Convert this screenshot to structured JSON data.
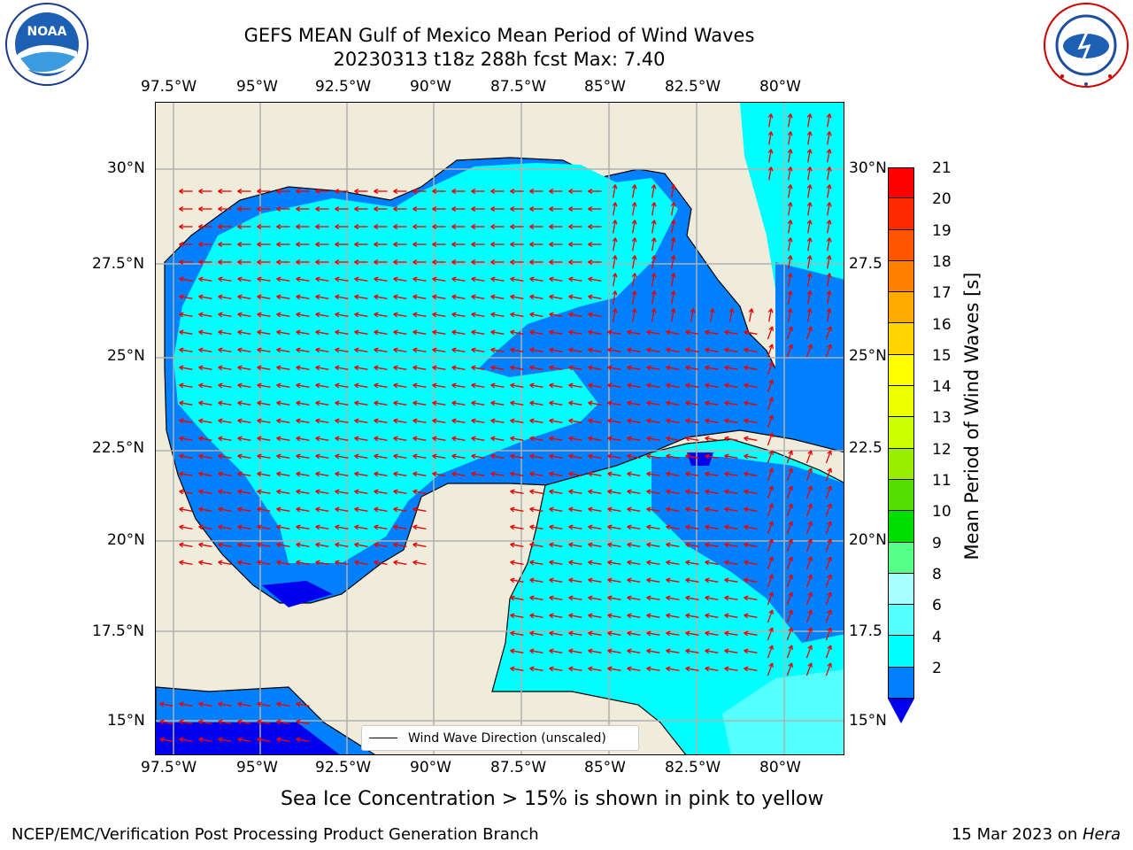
{
  "title": {
    "line1": "GEFS MEAN Gulf of Mexico Mean Period of Wind Waves",
    "line2": "20230313 t18z 288h fcst   Max: 7.40"
  },
  "axes": {
    "lon_labels": [
      "97.5°W",
      "95°W",
      "92.5°W",
      "90°W",
      "87.5°W",
      "85°W",
      "82.5°W",
      "80°W"
    ],
    "lat_labels": [
      "30°N",
      "27.5°N",
      "25°N",
      "22.5°N",
      "20°N",
      "17.5°N",
      "15°N"
    ],
    "lat_labels_right": [
      "30°N",
      "27.5",
      "25°N",
      "22.5",
      "20°N",
      "17.5",
      "15°N"
    ]
  },
  "legend": {
    "label": "Wind Wave Direction (unscaled)"
  },
  "colorbar": {
    "title": "Mean Period of Wind Waves [s]",
    "labels": [
      "21",
      "20",
      "19",
      "18",
      "17",
      "16",
      "15",
      "14",
      "13",
      "12",
      "11",
      "10",
      "9",
      "8",
      "6",
      "4",
      "2"
    ],
    "colors": [
      "#ff0000",
      "#ff2a00",
      "#ff5500",
      "#ff8000",
      "#ffaa00",
      "#ffd400",
      "#ffff00",
      "#eeff00",
      "#ccff00",
      "#99ee00",
      "#55dd00",
      "#00dd00",
      "#55ff88",
      "#aaffff",
      "#55ffff",
      "#00ffff",
      "#0080ff"
    ],
    "extend_color": "#0000ee"
  },
  "map_colors": {
    "land": "#efecdb",
    "level_2_4": "#0080ff",
    "level_4_6": "#00ffff",
    "level_6_8": "#55ffff",
    "below_2": "#0000ee",
    "arrows": "#ee0000"
  },
  "subtitle": "Sea Ice Concentration > 15% is shown in pink to yellow",
  "footer": {
    "left": "NCEP/EMC/Verification Post Processing Product Generation Branch",
    "right_date": "15 Mar 2023 on ",
    "right_host": "Hera"
  },
  "logos": {
    "noaa": "NOAA",
    "nws": "NATIONAL WEATHER SERVICE"
  }
}
